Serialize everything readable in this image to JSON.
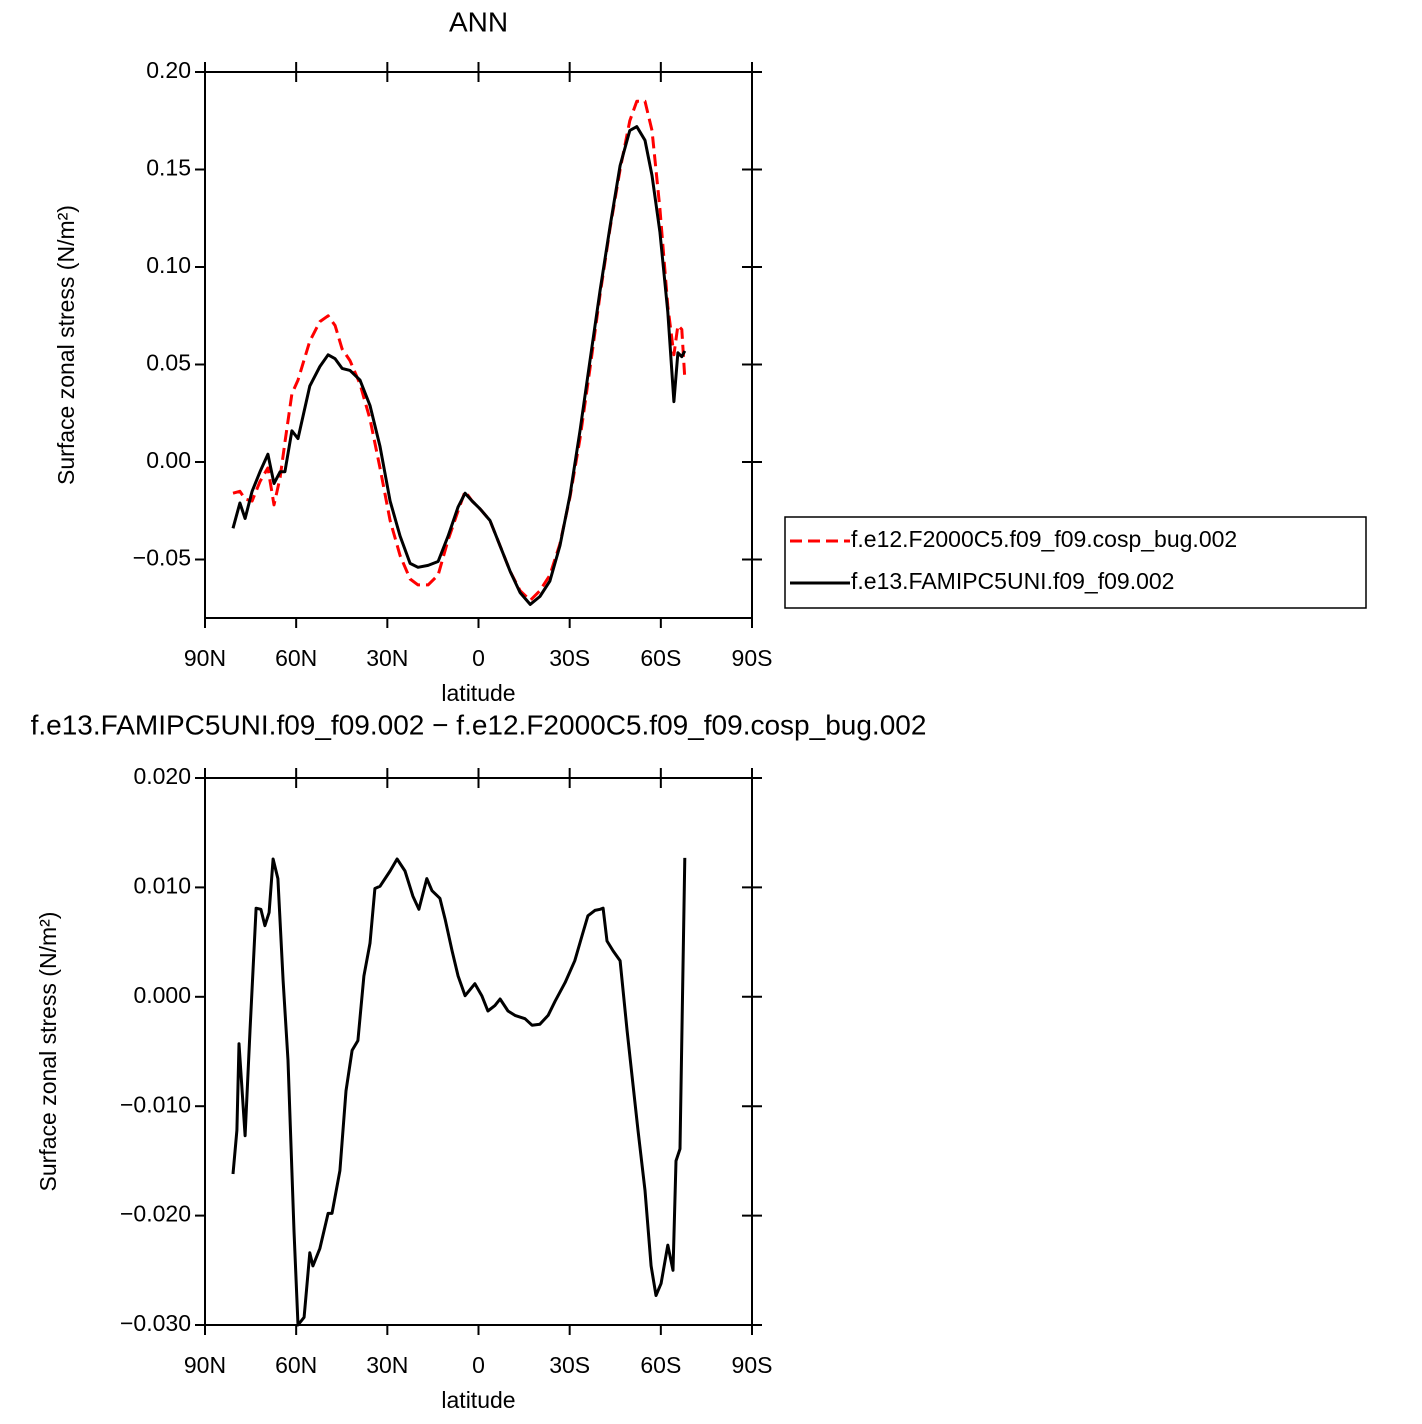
{
  "chart_data": [
    {
      "type": "line",
      "title": "ANN",
      "xlabel": "latitude",
      "ylabel": "Surface zonal stress (N/m²)",
      "xlim": [
        90,
        -90
      ],
      "ylim": [
        -0.08,
        0.2
      ],
      "xticks": [
        {
          "value": 90,
          "label": "90N"
        },
        {
          "value": 60,
          "label": "60N"
        },
        {
          "value": 30,
          "label": "30N"
        },
        0,
        {
          "value": -30,
          "label": "30S"
        },
        {
          "value": -60,
          "label": "60S"
        },
        {
          "value": -90,
          "label": "90S"
        }
      ],
      "yticks": [
        {
          "value": -0.05,
          "label": "−0.05"
        },
        {
          "value": 0,
          "label": "0.00"
        },
        {
          "value": 0.05,
          "label": "0.05"
        },
        {
          "value": 0.1,
          "label": "0.10"
        },
        {
          "value": 0.15,
          "label": "0.15"
        },
        {
          "value": 0.2,
          "label": "0.20"
        }
      ],
      "legend": "right",
      "x": [
        80.8,
        78.5,
        76.8,
        74.5,
        71.9,
        69.3,
        67.3,
        65.3,
        63.7,
        61.4,
        59.4,
        55.5,
        52.2,
        49.5,
        47.2,
        44.9,
        42.3,
        39.0,
        35.7,
        32.4,
        29.1,
        25.8,
        22.5,
        19.9,
        16.6,
        13.3,
        10.0,
        6.7,
        4.4,
        2.1,
        -0.5,
        -3.8,
        -7.1,
        -10.4,
        -13.7,
        -17.0,
        -20.2,
        -23.5,
        -26.8,
        -30.1,
        -33.4,
        -36.7,
        -40.0,
        -43.3,
        -46.6,
        -49.8,
        -52.1,
        -54.8,
        -57.1,
        -59.7,
        -62.3,
        -64.3,
        -65.6,
        -66.9,
        -67.9
      ],
      "series": [
        {
          "name": "f.e12.F2000C5.f09_f09.cosp_bug.002",
          "color": "#ff0000",
          "style": "dashed",
          "values": [
            -0.016,
            -0.015,
            -0.019,
            -0.02,
            -0.01,
            -0.003,
            -0.022,
            -0.008,
            0.01,
            0.035,
            0.042,
            0.062,
            0.072,
            0.075,
            0.07,
            0.058,
            0.052,
            0.04,
            0.022,
            -0.003,
            -0.03,
            -0.048,
            -0.06,
            -0.063,
            -0.063,
            -0.058,
            -0.04,
            -0.025,
            -0.015,
            -0.02,
            -0.024,
            -0.03,
            -0.043,
            -0.056,
            -0.066,
            -0.071,
            -0.066,
            -0.058,
            -0.042,
            -0.018,
            0.012,
            0.048,
            0.086,
            0.12,
            0.15,
            0.175,
            0.185,
            0.185,
            0.17,
            0.13,
            0.08,
            0.055,
            0.07,
            0.068,
            0.043
          ]
        },
        {
          "name": "f.e13.FAMIPC5UNI.f09_f09.002",
          "color": "#000000",
          "style": "solid",
          "values": [
            -0.034,
            -0.021,
            -0.029,
            -0.015,
            -0.005,
            0.004,
            -0.011,
            -0.005,
            -0.005,
            0.016,
            0.012,
            0.039,
            0.049,
            0.055,
            0.053,
            0.048,
            0.047,
            0.042,
            0.029,
            0.008,
            -0.02,
            -0.038,
            -0.052,
            -0.054,
            -0.053,
            -0.051,
            -0.038,
            -0.023,
            -0.016,
            -0.02,
            -0.024,
            -0.03,
            -0.043,
            -0.056,
            -0.067,
            -0.073,
            -0.069,
            -0.061,
            -0.043,
            -0.017,
            0.016,
            0.052,
            0.088,
            0.121,
            0.152,
            0.17,
            0.172,
            0.165,
            0.147,
            0.118,
            0.077,
            0.031,
            0.056,
            0.054,
            0.057
          ]
        }
      ]
    },
    {
      "type": "line",
      "title": "f.e13.FAMIPC5UNI.f09_f09.002 − f.e12.F2000C5.f09_f09.cosp_bug.002",
      "xlabel": "latitude",
      "ylabel": "Surface zonal stress (N/m²)",
      "xlim": [
        90,
        -90
      ],
      "ylim": [
        -0.03,
        0.02
      ],
      "xticks": [
        {
          "value": 90,
          "label": "90N"
        },
        {
          "value": 60,
          "label": "60N"
        },
        {
          "value": 30,
          "label": "30N"
        },
        0,
        {
          "value": -30,
          "label": "30S"
        },
        {
          "value": -60,
          "label": "60S"
        },
        {
          "value": -90,
          "label": "90S"
        }
      ],
      "yticks": [
        {
          "value": -0.03,
          "label": "−0.030"
        },
        {
          "value": -0.02,
          "label": "−0.020"
        },
        {
          "value": -0.01,
          "label": "−0.010"
        },
        {
          "value": 0,
          "label": "0.000"
        },
        {
          "value": 0.01,
          "label": "0.010"
        },
        {
          "value": 0.02,
          "label": "0.020"
        }
      ],
      "x": [
        80.8,
        79.5,
        78.8,
        76.8,
        75.2,
        73.2,
        71.6,
        70.3,
        68.9,
        67.6,
        66.0,
        64.3,
        62.7,
        60.7,
        59.4,
        57.4,
        55.5,
        54.5,
        52.2,
        49.5,
        48.2,
        45.6,
        43.6,
        41.6,
        39.7,
        37.7,
        35.7,
        34.1,
        32.4,
        29.1,
        26.8,
        24.2,
        21.6,
        19.6,
        17.0,
        15.3,
        12.7,
        11.0,
        8.7,
        6.7,
        4.4,
        1.2,
        -1.1,
        -3.1,
        -5.4,
        -7.1,
        -9.7,
        -12.0,
        -15.3,
        -17.6,
        -20.2,
        -22.9,
        -25.2,
        -28.5,
        -31.7,
        -34.1,
        -36.0,
        -38.3,
        -40.0,
        -41.0,
        -42.3,
        -44.3,
        -46.6,
        -48.9,
        -50.5,
        -52.5,
        -54.8,
        -56.8,
        -58.4,
        -60.1,
        -62.3,
        -64.0,
        -65.0,
        -66.3,
        -67.9
      ],
      "series": [
        {
          "color": "#000000",
          "style": "solid",
          "values": [
            -0.0162,
            -0.0122,
            -0.0043,
            -0.0127,
            -0.0031,
            0.0081,
            0.008,
            0.0065,
            0.0077,
            0.0126,
            0.0108,
            0.0015,
            -0.0058,
            -0.0214,
            -0.03,
            -0.0293,
            -0.0234,
            -0.0246,
            -0.023,
            -0.0198,
            -0.0198,
            -0.0159,
            -0.0086,
            -0.0049,
            -0.004,
            0.0019,
            0.0049,
            0.0099,
            0.0101,
            0.0115,
            0.0126,
            0.0115,
            0.0092,
            0.008,
            0.0108,
            0.0097,
            0.009,
            0.0071,
            0.0042,
            0.0019,
            0.0001,
            0.0012,
            0.0001,
            -0.0013,
            -0.0008,
            -0.0002,
            -0.0013,
            -0.0017,
            -0.002,
            -0.0026,
            -0.0025,
            -0.0017,
            -0.0004,
            0.0013,
            0.0033,
            0.0056,
            0.0074,
            0.0079,
            0.008,
            0.0081,
            0.0051,
            0.0042,
            0.0033,
            -0.0031,
            -0.0072,
            -0.0122,
            -0.0177,
            -0.0246,
            -0.0273,
            -0.0262,
            -0.0227,
            -0.025,
            -0.015,
            -0.0139,
            0.0127
          ]
        }
      ]
    }
  ]
}
